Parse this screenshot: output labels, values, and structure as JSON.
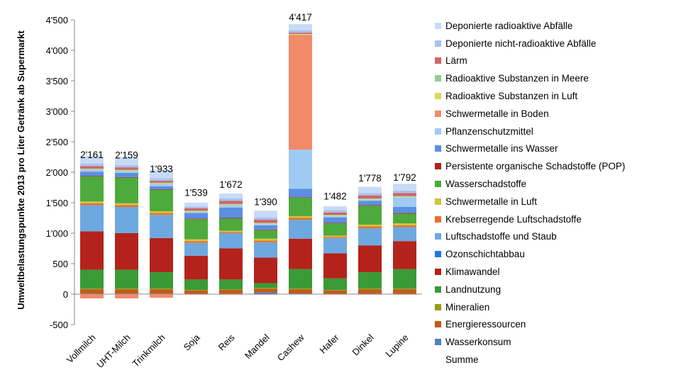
{
  "chart_data": {
    "type": "bar",
    "stacked": true,
    "title": "",
    "xlabel": "",
    "ylabel": "Umweltbelastungspunkte 2013 pro Liter Getränk ab Supermarkt",
    "ylim": [
      -500,
      4500
    ],
    "yticks": [
      -500,
      0,
      500,
      1000,
      1500,
      2000,
      2500,
      3000,
      3500,
      4000,
      4500
    ],
    "ytick_labels": [
      "-500",
      "0",
      "500",
      "1'000",
      "1'500",
      "2'000",
      "2'500",
      "3'000",
      "3'500",
      "4'000",
      "4'500"
    ],
    "grid": false,
    "legend_position": "right",
    "categories": [
      "Vollmilch",
      "UHT-Milch",
      "Trinkmilch",
      "Soja",
      "Reis",
      "Mandel",
      "Cashew",
      "Hafer",
      "Dinkel",
      "Lupine"
    ],
    "series": [
      {
        "name": "Wasserkonsum",
        "color": "#4f81bd",
        "values": [
          10,
          10,
          10,
          10,
          10,
          30,
          10,
          10,
          10,
          10
        ]
      },
      {
        "name": "Energieressourcen",
        "color": "#c55a11",
        "values": [
          70,
          70,
          70,
          50,
          60,
          60,
          70,
          50,
          70,
          70
        ]
      },
      {
        "name": "Mineralien",
        "color": "#9c9a1a",
        "values": [
          10,
          10,
          10,
          10,
          10,
          10,
          10,
          10,
          10,
          10
        ]
      },
      {
        "name": "Landnutzung",
        "color": "#3a9a36",
        "values": [
          310,
          310,
          270,
          170,
          160,
          80,
          320,
          190,
          270,
          320
        ]
      },
      {
        "name": "Klimawandel",
        "color": "#b3231b",
        "values": [
          630,
          600,
          560,
          390,
          510,
          420,
          500,
          410,
          440,
          460
        ]
      },
      {
        "name": "Ozonschichtabbau",
        "color": "#1f77e4",
        "values": [
          0,
          0,
          0,
          0,
          0,
          0,
          0,
          0,
          0,
          0
        ]
      },
      {
        "name": "Luftschadstoffe und Staub",
        "color": "#6ea8e0",
        "values": [
          430,
          430,
          380,
          210,
          250,
          250,
          310,
          250,
          280,
          230
        ]
      },
      {
        "name": "Krebserregende Luftschadstoffe",
        "color": "#e8712b",
        "values": [
          30,
          30,
          30,
          30,
          20,
          30,
          30,
          20,
          30,
          30
        ]
      },
      {
        "name": "Schwermetalle in Luft",
        "color": "#d4c33a",
        "values": [
          30,
          30,
          30,
          30,
          20,
          30,
          30,
          20,
          30,
          30
        ]
      },
      {
        "name": "Wasserschadstoffe",
        "color": "#4daa3c",
        "values": [
          410,
          420,
          350,
          330,
          200,
          140,
          300,
          200,
          310,
          160
        ]
      },
      {
        "name": "Persistente organische Schadstoffe (POP)",
        "color": "#b0231e",
        "values": [
          10,
          10,
          10,
          10,
          10,
          10,
          10,
          10,
          10,
          10
        ]
      },
      {
        "name": "Schwermetalle ins Wasser",
        "color": "#5b8fe3",
        "values": [
          70,
          70,
          50,
          90,
          170,
          70,
          140,
          90,
          70,
          100
        ]
      },
      {
        "name": "Pflanzenschutzmittel",
        "color": "#9fcbf2",
        "values": [
          30,
          30,
          40,
          20,
          40,
          20,
          640,
          20,
          20,
          160
        ]
      },
      {
        "name": "Schwermetalle in Boden",
        "color": "#f28a6a",
        "values": [
          0,
          0,
          0,
          0,
          0,
          0,
          1880,
          0,
          0,
          0
        ]
      },
      {
        "name": "Radioaktive Substanzen in Luft",
        "color": "#d9d95a",
        "values": [
          10,
          10,
          10,
          10,
          10,
          10,
          10,
          10,
          10,
          10
        ]
      },
      {
        "name": "Radioaktive Substanzen in Meere",
        "color": "#8fce8f",
        "values": [
          10,
          10,
          10,
          10,
          10,
          10,
          10,
          10,
          10,
          10
        ]
      },
      {
        "name": "Lärm",
        "color": "#d1636c",
        "values": [
          40,
          40,
          30,
          40,
          50,
          50,
          20,
          40,
          50,
          50
        ]
      },
      {
        "name": "Deponierte nicht-radioaktive Abfälle",
        "color": "#a9c1ee",
        "values": [
          40,
          40,
          40,
          30,
          40,
          40,
          40,
          40,
          40,
          40
        ]
      },
      {
        "name": "Deponierte radioaktive Abfälle",
        "color": "#c8dbf6",
        "values": [
          130,
          130,
          140,
          60,
          80,
          110,
          100,
          60,
          100,
          110
        ]
      }
    ],
    "negative_series": [
      {
        "name": "Schwermetalle in Boden",
        "color": "#f28a6a",
        "values": [
          -70,
          -70,
          -60,
          -10,
          -10,
          -10,
          0,
          -10,
          -10,
          -10
        ]
      }
    ],
    "summe": {
      "name": "Summe",
      "values": [
        2161,
        2159,
        1933,
        1539,
        1672,
        1390,
        4417,
        1482,
        1778,
        1792
      ]
    },
    "summe_labels": [
      "2'161",
      "2'159",
      "1'933",
      "1'539",
      "1'672",
      "1'390",
      "4'417",
      "1'482",
      "1'778",
      "1'792"
    ]
  },
  "legend": {
    "items": [
      {
        "label": "Deponierte radioaktive Abfälle",
        "color": "#c8dbf6"
      },
      {
        "label": "Deponierte nicht-radioaktive Abfälle",
        "color": "#a9c1ee"
      },
      {
        "label": "Lärm",
        "color": "#d1636c"
      },
      {
        "label": "Radioaktive Substanzen in Meere",
        "color": "#8fce8f"
      },
      {
        "label": "Radioaktive Substanzen in Luft",
        "color": "#d9d95a"
      },
      {
        "label": "Schwermetalle in Boden",
        "color": "#f28a6a"
      },
      {
        "label": "Pflanzenschutzmittel",
        "color": "#9fcbf2"
      },
      {
        "label": "Schwermetalle ins Wasser",
        "color": "#5b8fe3"
      },
      {
        "label": "Persistente organische Schadstoffe (POP)",
        "color": "#b0231e"
      },
      {
        "label": "Wasserschadstoffe",
        "color": "#4daa3c"
      },
      {
        "label": "Schwermetalle in Luft",
        "color": "#d4c33a"
      },
      {
        "label": "Krebserregende Luftschadstoffe",
        "color": "#e8712b"
      },
      {
        "label": "Luftschadstoffe und Staub",
        "color": "#6ea8e0"
      },
      {
        "label": "Ozonschichtabbau",
        "color": "#1f77e4"
      },
      {
        "label": "Klimawandel",
        "color": "#b3231b"
      },
      {
        "label": "Landnutzung",
        "color": "#3a9a36"
      },
      {
        "label": "Mineralien",
        "color": "#9c9a1a"
      },
      {
        "label": "Energieressourcen",
        "color": "#c55a11"
      },
      {
        "label": "Wasserkonsum",
        "color": "#4f81bd"
      },
      {
        "label": "Summe",
        "color": ""
      }
    ]
  }
}
